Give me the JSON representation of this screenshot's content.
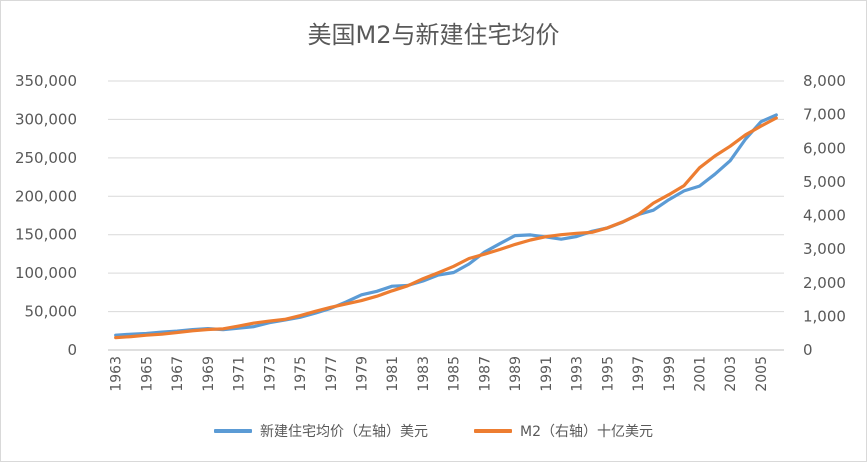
{
  "chart_data": {
    "type": "line",
    "title": "美国M2与新建住宅均价",
    "x": [
      1963,
      1964,
      1965,
      1966,
      1967,
      1968,
      1969,
      1970,
      1971,
      1972,
      1973,
      1974,
      1975,
      1976,
      1977,
      1978,
      1979,
      1980,
      1981,
      1982,
      1983,
      1984,
      1985,
      1986,
      1987,
      1988,
      1989,
      1990,
      1991,
      1992,
      1993,
      1994,
      1995,
      1996,
      1997,
      1998,
      1999,
      2000,
      2001,
      2002,
      2003,
      2004,
      2005,
      2006
    ],
    "x_tick_labels": [
      "1963",
      "1965",
      "1967",
      "1969",
      "1971",
      "1973",
      "1975",
      "1977",
      "1979",
      "1981",
      "1983",
      "1985",
      "1987",
      "1989",
      "1991",
      "1993",
      "1995",
      "1997",
      "1999",
      "2001",
      "2003",
      "2005"
    ],
    "y_left": {
      "ylim": [
        0,
        350000
      ],
      "tick_labels": [
        "0",
        "50,000",
        "100,000",
        "150,000",
        "200,000",
        "250,000",
        "300,000",
        "350,000"
      ],
      "tick_values": [
        0,
        50000,
        100000,
        150000,
        200000,
        250000,
        300000,
        350000
      ]
    },
    "y_right": {
      "ylim": [
        0,
        8000
      ],
      "tick_labels": [
        "0",
        "1,000",
        "2,000",
        "3,000",
        "4,000",
        "5,000",
        "6,000",
        "7,000",
        "8,000"
      ],
      "tick_values": [
        0,
        1000,
        2000,
        3000,
        4000,
        5000,
        6000,
        7000,
        8000
      ]
    },
    "grid": true,
    "legend_position": "bottom",
    "series": [
      {
        "name": "新建住宅均价（左轴）美元",
        "axis": "left",
        "color": "#5b9bd5",
        "values": [
          19300,
          20500,
          21500,
          23300,
          24600,
          26600,
          27900,
          26600,
          28300,
          30500,
          35500,
          38900,
          42600,
          48000,
          54200,
          62500,
          71800,
          76400,
          83000,
          83900,
          89800,
          97600,
          100800,
          111900,
          127200,
          138300,
          148800,
          149800,
          147200,
          144100,
          147700,
          154500,
          158700,
          166400,
          176200,
          181900,
          195600,
          207000,
          213200,
          228700,
          246300,
          274500,
          297000,
          305900
        ]
      },
      {
        "name": "M2（右轴）十亿美元",
        "axis": "right",
        "color": "#ed7d31",
        "values": [
          370,
          400,
          440,
          470,
          520,
          570,
          610,
          630,
          710,
          800,
          860,
          910,
          1020,
          1150,
          1270,
          1370,
          1470,
          1600,
          1760,
          1910,
          2120,
          2300,
          2490,
          2720,
          2850,
          2990,
          3140,
          3270,
          3370,
          3430,
          3470,
          3500,
          3630,
          3810,
          4020,
          4370,
          4620,
          4890,
          5420,
          5770,
          6060,
          6400,
          6660,
          6900
        ]
      }
    ]
  }
}
